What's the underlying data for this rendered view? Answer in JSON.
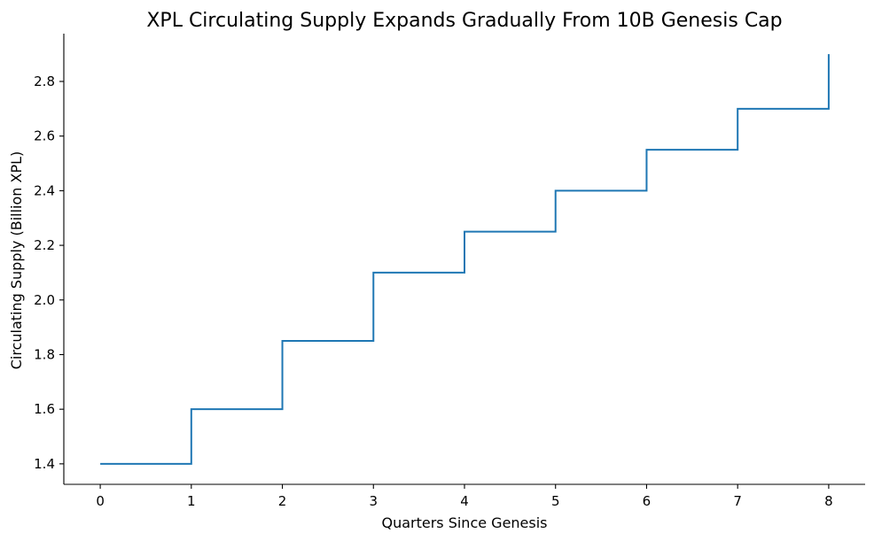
{
  "chart_data": {
    "type": "line",
    "step": "post",
    "title": "XPL Circulating Supply Expands Gradually From 10B Genesis Cap",
    "xlabel": "Quarters Since Genesis",
    "ylabel": "Circulating Supply (Billion XPL)",
    "x": [
      0,
      1,
      2,
      3,
      4,
      5,
      6,
      7,
      8
    ],
    "series": [
      {
        "values": [
          1.4,
          1.6,
          1.85,
          2.1,
          2.25,
          2.4,
          2.55,
          2.7,
          2.9
        ],
        "color": "#1f77b4"
      }
    ],
    "xlim": [
      -0.4,
      8.4
    ],
    "ylim": [
      1.325,
      2.975
    ],
    "xticks": [
      0,
      1,
      2,
      3,
      4,
      5,
      6,
      7,
      8
    ],
    "xtick_labels": [
      "0",
      "1",
      "2",
      "3",
      "4",
      "5",
      "6",
      "7",
      "8"
    ],
    "yticks": [
      1.4,
      1.6,
      1.8,
      2.0,
      2.2,
      2.4,
      2.6,
      2.8
    ],
    "ytick_labels": [
      "1.4",
      "1.6",
      "1.8",
      "2.0",
      "2.2",
      "2.4",
      "2.6",
      "2.8"
    ],
    "grid": false,
    "spines": "left-bottom"
  }
}
